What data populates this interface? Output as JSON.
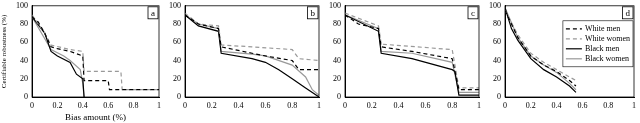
{
  "chart_data": [
    {
      "type": "line",
      "title": "a",
      "xlabel": "Bias amount (%)",
      "ylabel": "Certifiable robustness (%)",
      "xlim": [
        0,
        1
      ],
      "ylim": [
        0,
        100
      ],
      "xticks": [
        0,
        0.2,
        0.4,
        0.6,
        0.8,
        1
      ],
      "yticks": [
        0,
        20,
        40,
        60,
        80,
        100
      ],
      "grid": false,
      "series": [
        {
          "name": "White men",
          "color": "#000000",
          "line_style": "dashed",
          "x": [
            0,
            0.05,
            0.1,
            0.15,
            0.2,
            0.3,
            0.4,
            0.41,
            0.6,
            0.61,
            1
          ],
          "values": [
            88,
            82,
            70,
            55,
            53,
            50,
            45,
            18,
            18,
            8,
            8
          ]
        },
        {
          "name": "White women",
          "color": "#999999",
          "line_style": "dashed",
          "x": [
            0,
            0.1,
            0.15,
            0.3,
            0.4,
            0.41,
            0.7,
            0.71,
            1
          ],
          "values": [
            90,
            70,
            57,
            52,
            50,
            28,
            28,
            8,
            8
          ]
        },
        {
          "name": "Black men",
          "color": "#000000",
          "line_style": "solid",
          "x": [
            0,
            0.1,
            0.15,
            0.2,
            0.3,
            0.35,
            0.4,
            0.41
          ],
          "values": [
            88,
            70,
            50,
            45,
            38,
            25,
            20,
            0
          ]
        },
        {
          "name": "Black women",
          "color": "#999999",
          "line_style": "solid",
          "x": [
            0,
            0.15,
            0.25,
            0.3,
            0.38,
            0.4,
            0.41
          ],
          "values": [
            88,
            52,
            45,
            40,
            30,
            15,
            0
          ]
        }
      ]
    },
    {
      "type": "line",
      "title": "b",
      "xlim": [
        0,
        1
      ],
      "ylim": [
        0,
        100
      ],
      "xticks": [
        0,
        0.2,
        0.4,
        0.6,
        0.8,
        1
      ],
      "yticks": [
        0,
        20,
        40,
        60,
        80,
        100
      ],
      "grid": false,
      "series": [
        {
          "name": "White men",
          "color": "#000000",
          "line_style": "dashed",
          "x": [
            0,
            0.05,
            0.1,
            0.25,
            0.27,
            0.5,
            0.6,
            0.8,
            0.85,
            1
          ],
          "values": [
            90,
            85,
            80,
            75,
            55,
            48,
            45,
            40,
            30,
            30
          ]
        },
        {
          "name": "White women",
          "color": "#999999",
          "line_style": "dashed",
          "x": [
            0,
            0.1,
            0.25,
            0.27,
            0.5,
            0.8,
            0.85,
            1
          ],
          "values": [
            92,
            80,
            78,
            57,
            55,
            52,
            42,
            40
          ]
        },
        {
          "name": "Black men",
          "color": "#000000",
          "line_style": "solid",
          "x": [
            0,
            0.1,
            0.25,
            0.27,
            0.5,
            0.6,
            0.7,
            0.8,
            0.9,
            1
          ],
          "values": [
            90,
            78,
            72,
            48,
            42,
            38,
            30,
            20,
            10,
            0
          ]
        },
        {
          "name": "Black women",
          "color": "#999999",
          "line_style": "solid",
          "x": [
            0,
            0.1,
            0.25,
            0.27,
            0.5,
            0.6,
            0.8,
            0.9,
            0.95,
            1
          ],
          "values": [
            90,
            80,
            75,
            50,
            47,
            45,
            35,
            22,
            8,
            2
          ]
        }
      ]
    },
    {
      "type": "line",
      "title": "c",
      "xlim": [
        0,
        1
      ],
      "ylim": [
        0,
        100
      ],
      "xticks": [
        0,
        0.2,
        0.4,
        0.6,
        0.8,
        1
      ],
      "yticks": [
        0,
        20,
        40,
        60,
        80,
        100
      ],
      "grid": false,
      "series": [
        {
          "name": "White men",
          "color": "#000000",
          "line_style": "dashed",
          "x": [
            0,
            0.1,
            0.25,
            0.27,
            0.5,
            0.8,
            0.85,
            1
          ],
          "values": [
            90,
            80,
            75,
            55,
            50,
            42,
            8,
            8
          ]
        },
        {
          "name": "White women",
          "color": "#999999",
          "line_style": "dashed",
          "x": [
            0,
            0.25,
            0.27,
            0.8,
            0.85,
            1
          ],
          "values": [
            92,
            78,
            58,
            52,
            10,
            10
          ]
        },
        {
          "name": "Black men",
          "color": "#000000",
          "line_style": "solid",
          "x": [
            0,
            0.25,
            0.27,
            0.5,
            0.8,
            0.82,
            0.85,
            1
          ],
          "values": [
            90,
            72,
            48,
            42,
            30,
            28,
            2,
            2
          ]
        },
        {
          "name": "Black women",
          "color": "#999999",
          "line_style": "solid",
          "x": [
            0,
            0.25,
            0.27,
            0.5,
            0.8,
            0.85,
            1
          ],
          "values": [
            90,
            75,
            50,
            48,
            38,
            5,
            5
          ]
        }
      ]
    },
    {
      "type": "line",
      "title": "d",
      "xlim": [
        0,
        1
      ],
      "ylim": [
        0,
        100
      ],
      "xticks": [
        0,
        0.2,
        0.4,
        0.6,
        0.8,
        1
      ],
      "yticks": [
        0,
        20,
        40,
        60,
        80,
        100
      ],
      "grid": false,
      "legend": "upper right",
      "series": [
        {
          "name": "White men",
          "color": "#000000",
          "line_style": "dashed",
          "x": [
            0,
            0.05,
            0.1,
            0.2,
            0.3,
            0.4,
            0.5,
            0.55
          ],
          "values": [
            95,
            80,
            65,
            45,
            35,
            28,
            18,
            12
          ]
        },
        {
          "name": "White women",
          "color": "#999999",
          "line_style": "dashed",
          "x": [
            0,
            0.1,
            0.2,
            0.3,
            0.4,
            0.5,
            0.55
          ],
          "values": [
            95,
            68,
            48,
            38,
            30,
            22,
            18
          ]
        },
        {
          "name": "Black men",
          "color": "#000000",
          "line_style": "solid",
          "x": [
            0,
            0.05,
            0.1,
            0.2,
            0.3,
            0.4,
            0.5,
            0.55
          ],
          "values": [
            98,
            75,
            62,
            42,
            30,
            22,
            12,
            5
          ]
        },
        {
          "name": "Black women",
          "color": "#999999",
          "line_style": "solid",
          "x": [
            0,
            0.1,
            0.2,
            0.3,
            0.4,
            0.5,
            0.55
          ],
          "values": [
            98,
            65,
            45,
            35,
            27,
            15,
            8
          ]
        }
      ]
    }
  ]
}
